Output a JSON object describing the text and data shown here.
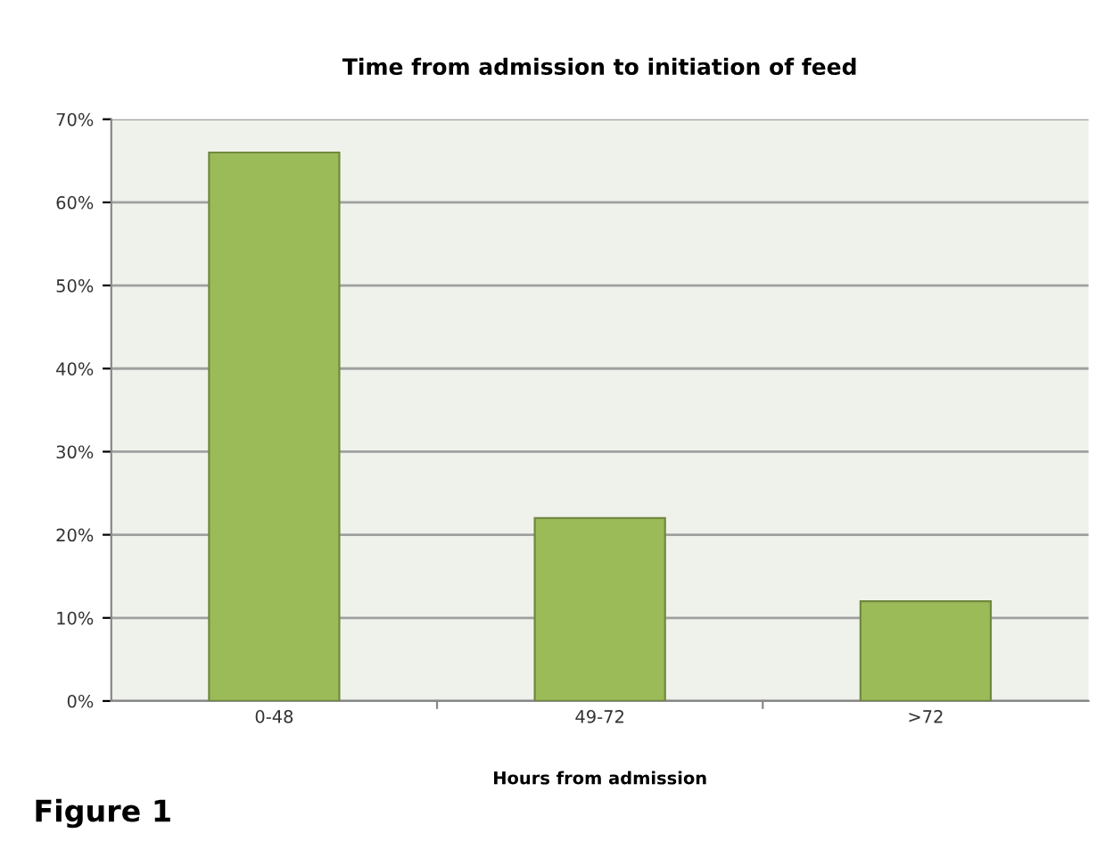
{
  "chart_data": {
    "type": "bar",
    "title": "Time from admission to initiation of feed",
    "xlabel": "Hours from admission",
    "categories": [
      "0-48",
      "49-72",
      ">72"
    ],
    "values": [
      66,
      22,
      12
    ],
    "color": "#9bbb59",
    "ylim": [
      0,
      70
    ],
    "yticks": [
      {
        "value": 0,
        "label": "0%"
      },
      {
        "value": 10,
        "label": "10%"
      },
      {
        "value": 20,
        "label": "20%"
      },
      {
        "value": 30,
        "label": "30%"
      },
      {
        "value": 40,
        "label": "40%"
      },
      {
        "value": 50,
        "label": "50%"
      },
      {
        "value": 60,
        "label": "60%"
      },
      {
        "value": 70,
        "label": "70%"
      }
    ],
    "grid": "y",
    "annotations": [
      "Figure 1"
    ]
  }
}
